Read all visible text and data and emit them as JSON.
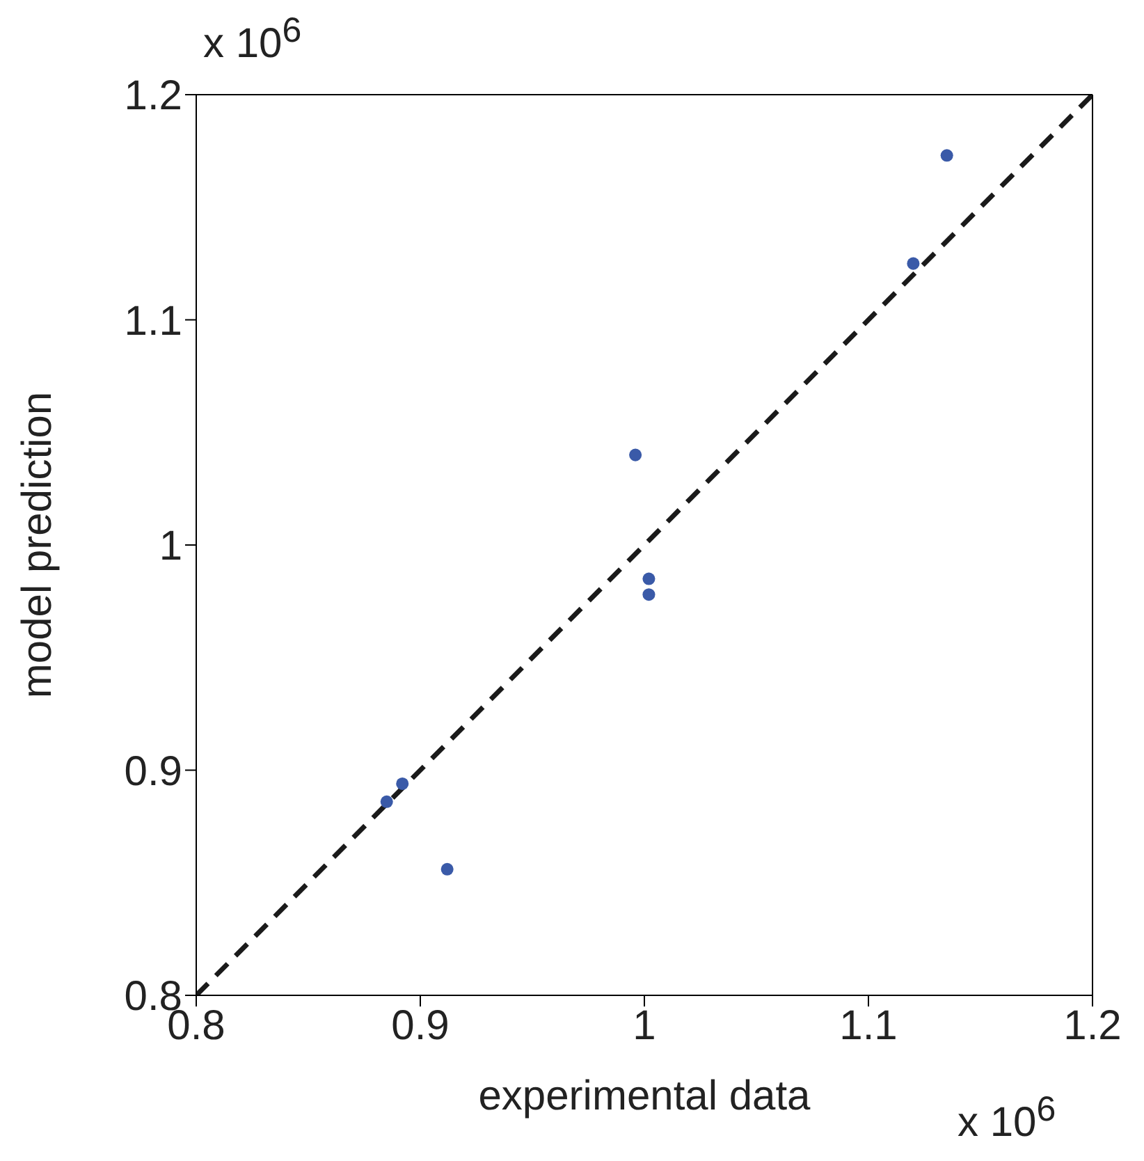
{
  "chart_data": {
    "type": "scatter",
    "xlabel": "experimental data",
    "ylabel": "model prediction",
    "annotations": [
      "x 10$^{6}$",
      "x 10$^{6}$"
    ],
    "xlim": [
      0.8,
      1.2
    ],
    "ylim": [
      0.8,
      1.2
    ],
    "xticks": [
      0.8,
      0.9,
      1,
      1.1,
      1.2
    ],
    "yticks": [
      0.8,
      0.9,
      1,
      1.1,
      1.2
    ],
    "grid": false,
    "series": [
      {
        "color": "#3a5aa8",
        "marker": "circle",
        "x": [
          0.885,
          0.892,
          0.912,
          0.996,
          1.002,
          1.002,
          1.12,
          1.135
        ],
        "values": [
          0.886,
          0.894,
          0.856,
          1.04,
          0.985,
          0.978,
          1.125,
          1.173
        ]
      },
      {
        "type": "line",
        "color": "#1a1a1a",
        "line_style": "dashed",
        "marker": "none",
        "x": [
          0.8,
          1.2
        ],
        "values": [
          0.8,
          1.2
        ]
      }
    ]
  }
}
